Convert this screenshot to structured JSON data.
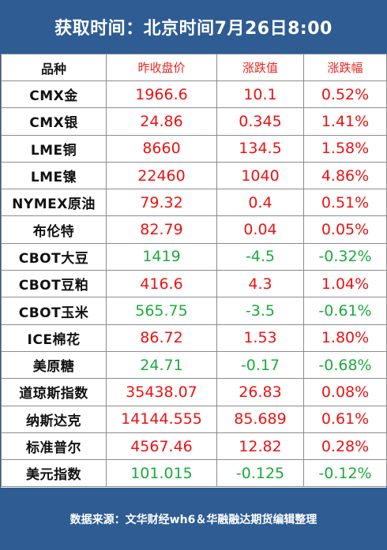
{
  "header": {
    "title": "获取时间：北京时间7月26日8:00"
  },
  "table": {
    "columns": [
      "品种",
      "昨收盘价",
      "涨跌值",
      "涨跌幅"
    ],
    "rows": [
      {
        "name": "CMX金",
        "close": "1966.6",
        "change": "10.1",
        "pct": "0.52%",
        "trend": "up"
      },
      {
        "name": "CMX银",
        "close": "24.86",
        "change": "0.345",
        "pct": "1.41%",
        "trend": "up"
      },
      {
        "name": "LME铜",
        "close": "8660",
        "change": "134.5",
        "pct": "1.58%",
        "trend": "up"
      },
      {
        "name": "LME镍",
        "close": "22460",
        "change": "1040",
        "pct": "4.86%",
        "trend": "up"
      },
      {
        "name": "NYMEX原油",
        "close": "79.32",
        "change": "0.4",
        "pct": "0.51%",
        "trend": "up"
      },
      {
        "name": "布伦特",
        "close": "82.79",
        "change": "0.04",
        "pct": "0.05%",
        "trend": "up"
      },
      {
        "name": "CBOT大豆",
        "close": "1419",
        "change": "-4.5",
        "pct": "-0.32%",
        "trend": "down"
      },
      {
        "name": "CBOT豆粕",
        "close": "416.6",
        "change": "4.3",
        "pct": "1.04%",
        "trend": "up"
      },
      {
        "name": "CBOT玉米",
        "close": "565.75",
        "change": "-3.5",
        "pct": "-0.61%",
        "trend": "down"
      },
      {
        "name": "ICE棉花",
        "close": "86.72",
        "change": "1.53",
        "pct": "1.80%",
        "trend": "up"
      },
      {
        "name": "美原糖",
        "close": "24.71",
        "change": "-0.17",
        "pct": "-0.68%",
        "trend": "down"
      },
      {
        "name": "道琼斯指数",
        "close": "35438.07",
        "change": "26.83",
        "pct": "0.08%",
        "trend": "up"
      },
      {
        "name": "纳斯达克",
        "close": "14144.555",
        "change": "85.689",
        "pct": "0.61%",
        "trend": "up"
      },
      {
        "name": "标准普尔",
        "close": "4567.46",
        "change": "12.82",
        "pct": "0.28%",
        "trend": "up"
      },
      {
        "name": "美元指数",
        "close": "101.015",
        "change": "-0.125",
        "pct": "-0.12%",
        "trend": "down"
      }
    ]
  },
  "footer": {
    "source": "数据来源：文华财经wh6＆华融融达期货编辑整理"
  },
  "colors": {
    "frame": "#2e5c93",
    "up": "#ee1111",
    "down": "#1bab3c",
    "header_text": "#e8261f"
  }
}
